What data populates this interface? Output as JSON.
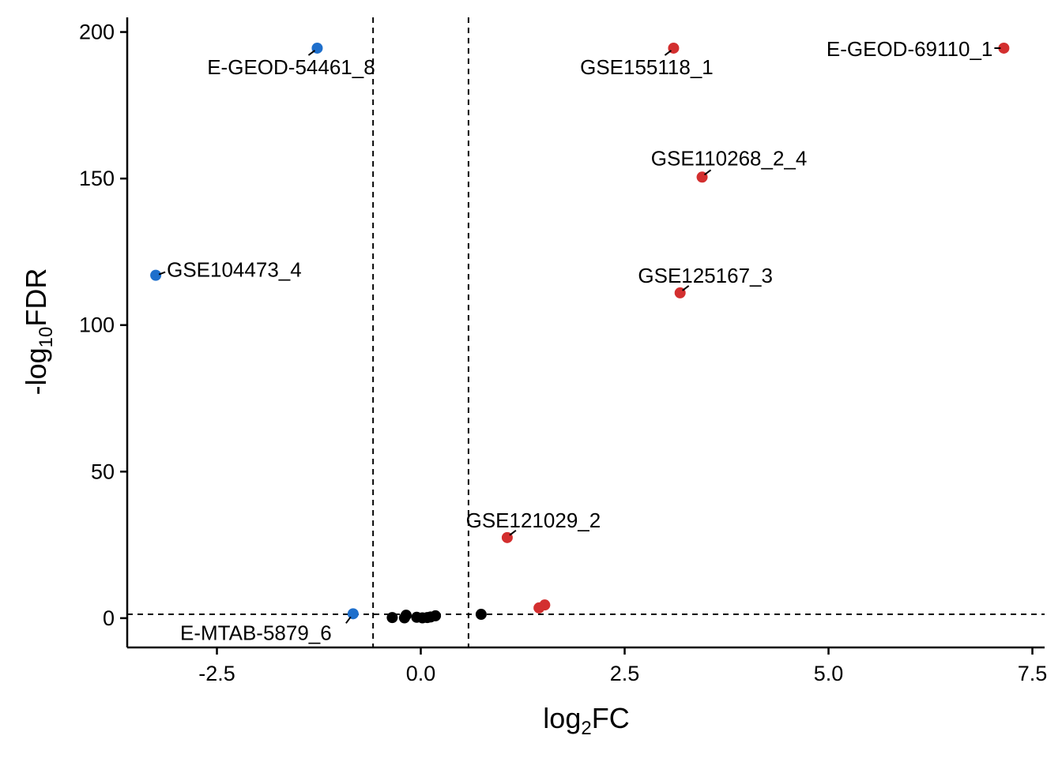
{
  "chart_data": {
    "type": "scatter",
    "title": "",
    "xlabel": {
      "base": "log",
      "sub": "2",
      "rest": "FC"
    },
    "ylabel": {
      "base": "-log",
      "sub": "10",
      "rest": "FDR"
    },
    "xlim": [
      -3.6,
      7.65
    ],
    "ylim": [
      -10,
      205
    ],
    "xticks": [
      -2.5,
      0,
      2.5,
      5,
      7.5
    ],
    "xtick_labels": [
      "-2.5",
      "0.0",
      "2.5",
      "5.0",
      "7.5"
    ],
    "yticks": [
      0,
      50,
      100,
      150,
      200
    ],
    "ytick_labels": [
      "0",
      "50",
      "100",
      "150",
      "200"
    ],
    "grid": false,
    "thresholds": {
      "vlines": [
        -0.585,
        0.585
      ],
      "hline": 1.3
    },
    "colors": {
      "up": "#D32F2F",
      "down": "#1E6FCC",
      "ns": "#000000"
    },
    "points": [
      {
        "x": 7.15,
        "y": 194.5,
        "group": "up",
        "label": "E-GEOD-69110_1"
      },
      {
        "x": 3.1,
        "y": 194.5,
        "group": "up",
        "label": "GSE155118_1"
      },
      {
        "x": 3.45,
        "y": 150.5,
        "group": "up",
        "label": "GSE110268_2_4"
      },
      {
        "x": 3.18,
        "y": 111.0,
        "group": "up",
        "label": "GSE125167_3"
      },
      {
        "x": 1.06,
        "y": 27.5,
        "group": "up",
        "label": "GSE121029_2"
      },
      {
        "x": 1.52,
        "y": 4.5,
        "group": "up",
        "label": ""
      },
      {
        "x": 1.45,
        "y": 3.5,
        "group": "up",
        "label": ""
      },
      {
        "x": -1.27,
        "y": 194.5,
        "group": "down",
        "label": "E-GEOD-54461_8"
      },
      {
        "x": -3.25,
        "y": 117.0,
        "group": "down",
        "label": "GSE104473_4"
      },
      {
        "x": -0.83,
        "y": 1.5,
        "group": "down",
        "label": "E-MTAB-5879_6"
      },
      {
        "x": -0.35,
        "y": 0.2,
        "group": "ns",
        "label": ""
      },
      {
        "x": -0.2,
        "y": 0.1,
        "group": "ns",
        "label": ""
      },
      {
        "x": -0.18,
        "y": 1.0,
        "group": "ns",
        "label": ""
      },
      {
        "x": -0.05,
        "y": 0.3,
        "group": "ns",
        "label": ""
      },
      {
        "x": 0.02,
        "y": 0.1,
        "group": "ns",
        "label": ""
      },
      {
        "x": 0.08,
        "y": 0.2,
        "group": "ns",
        "label": ""
      },
      {
        "x": 0.12,
        "y": 0.4,
        "group": "ns",
        "label": ""
      },
      {
        "x": 0.18,
        "y": 0.8,
        "group": "ns",
        "label": ""
      },
      {
        "x": 0.74,
        "y": 1.3,
        "group": "ns",
        "label": ""
      }
    ]
  }
}
